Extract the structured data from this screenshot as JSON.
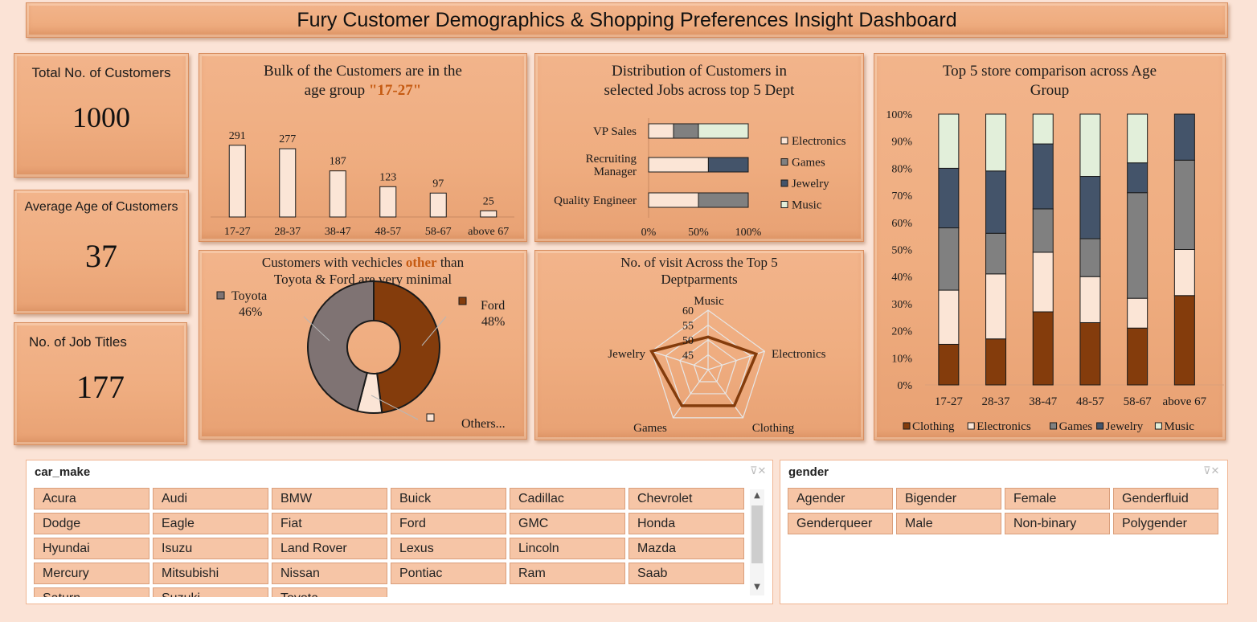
{
  "dashboard": {
    "title": "Fury Customer Demographics & Shopping Preferences Insight Dashboard"
  },
  "kpis": [
    {
      "label": "Total No. of Customers",
      "value": "1000"
    },
    {
      "label": "Average Age of Customers",
      "value": "37"
    },
    {
      "label": "No. of Job Titles",
      "value": "177"
    }
  ],
  "colors": {
    "clothing": "#843c0c",
    "electronics": "#fbe5d6",
    "games": "#808080",
    "jewelry": "#44546a",
    "music": "#e2efda",
    "accent": "#c55a11",
    "toyota": "#7f7373",
    "ford": "#843c0c",
    "others": "#fbe5d6"
  },
  "chart_data": [
    {
      "type": "bar",
      "title_pre": "Bulk of the Customers are in the",
      "title_mid": "age group ",
      "title_hl": "\"17-27\"",
      "categories": [
        "17-27",
        "28-37",
        "38-47",
        "48-57",
        "58-67",
        "above 67"
      ],
      "values": [
        291,
        277,
        187,
        123,
        97,
        25
      ],
      "ylim": [
        0,
        300
      ]
    },
    {
      "type": "bar",
      "title_line1": "Distribution of Customers in",
      "title_line2": "selected Jobs across top 5 Dept",
      "orientation": "horizontal-stacked-100",
      "categories": [
        "VP Sales",
        "Recruiting Manager",
        "Quality Engineer"
      ],
      "series": [
        {
          "name": "Electronics",
          "values": [
            0.25,
            0.6,
            0.5
          ]
        },
        {
          "name": "Games",
          "values": [
            0.25,
            0.0,
            0.5
          ]
        },
        {
          "name": "Jewelry",
          "values": [
            0.0,
            0.4,
            0.0
          ]
        },
        {
          "name": "Music",
          "values": [
            0.5,
            0.0,
            0.0
          ]
        }
      ],
      "ticks": [
        "0%",
        "50%",
        "100%"
      ]
    },
    {
      "type": "bar",
      "title_line1": "Top 5 store comparison across Age",
      "title_line2": "Group",
      "orientation": "vertical-stacked-100",
      "categories": [
        "17-27",
        "28-37",
        "38-47",
        "48-57",
        "58-67",
        "above 67"
      ],
      "series": [
        {
          "name": "Clothing",
          "values": [
            15,
            17,
            27,
            23,
            21,
            33
          ]
        },
        {
          "name": "Electronics",
          "values": [
            20,
            24,
            22,
            17,
            11,
            17
          ]
        },
        {
          "name": "Games",
          "values": [
            23,
            15,
            16,
            14,
            39,
            33
          ]
        },
        {
          "name": "Jewelry",
          "values": [
            22,
            23,
            24,
            23,
            11,
            17
          ]
        },
        {
          "name": "Music",
          "values": [
            20,
            21,
            11,
            23,
            18,
            0
          ]
        }
      ],
      "yticks": [
        "0%",
        "10%",
        "20%",
        "30%",
        "40%",
        "50%",
        "60%",
        "70%",
        "80%",
        "90%",
        "100%"
      ]
    },
    {
      "type": "pie",
      "title_pre": "Customers with vechicles ",
      "title_hl": "other",
      "title_post": " than",
      "title_line2": "Toyota & Ford are very minimal",
      "slices": [
        {
          "name": "Ford",
          "value": 48,
          "label": "48%"
        },
        {
          "name": "Others...",
          "value": 6,
          "label": ""
        },
        {
          "name": "Toyota",
          "value": 46,
          "label": "46%"
        }
      ]
    },
    {
      "type": "radar",
      "title_line1": "No. of visit Across the Top 5",
      "title_line2": "Deptparments",
      "categories": [
        "Music",
        "Electronics",
        "Clothing",
        "Games",
        "Jewelry"
      ],
      "values": [
        51,
        57,
        55,
        55,
        60
      ],
      "ticks": [
        "45",
        "50",
        "55",
        "60"
      ],
      "rlim": [
        40,
        60
      ]
    }
  ],
  "slicers": {
    "car_make": {
      "header": "car_make",
      "items": [
        "Acura",
        "Audi",
        "BMW",
        "Buick",
        "Cadillac",
        "Chevrolet",
        "Dodge",
        "Eagle",
        "Fiat",
        "Ford",
        "GMC",
        "Honda",
        "Hyundai",
        "Isuzu",
        "Land Rover",
        "Lexus",
        "Lincoln",
        "Mazda",
        "Mercury",
        "Mitsubishi",
        "Nissan",
        "Pontiac",
        "Ram",
        "Saab",
        "Saturn",
        "Suzuki",
        "Toyota"
      ]
    },
    "gender": {
      "header": "gender",
      "items": [
        "Agender",
        "Bigender",
        "Female",
        "Genderfluid",
        "Genderqueer",
        "Male",
        "Non-binary",
        "Polygender"
      ]
    }
  }
}
